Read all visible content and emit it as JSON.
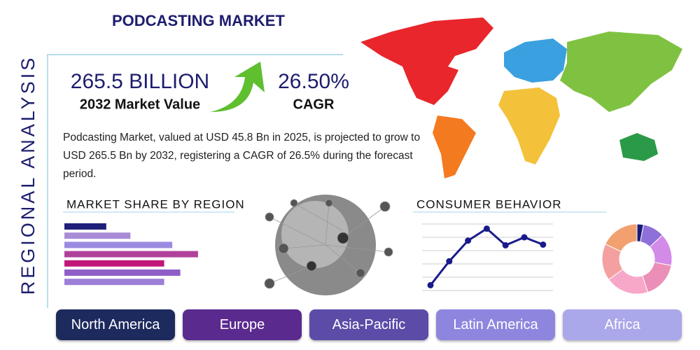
{
  "title": "PODCASTING MARKET",
  "side_label": "REGIONAL ANALYSIS",
  "stats": [
    {
      "value": "265.5 BILLION",
      "label": "2032 Market Value"
    },
    {
      "value": "26.50%",
      "label": "CAGR"
    }
  ],
  "description": "Podcasting Market, valued at USD 45.8 Bn in 2025, is projected to grow to USD 265.5 Bn by 2032, registering a CAGR of 26.5% during the forecast period.",
  "market_share": {
    "type": "bar",
    "title": "MARKET SHARE BY REGION",
    "values": [
      26,
      41,
      67,
      83,
      62,
      72,
      62
    ],
    "colors": [
      "#1f1f7a",
      "#a98bd6",
      "#9b8be0",
      "#b1429c",
      "#c2177a",
      "#8f5fc7",
      "#9d7fd8"
    ],
    "xlim": [
      0,
      100
    ]
  },
  "consumer_behavior": {
    "type": "line",
    "title": "CONSUMER BEHAVIOR",
    "values": [
      8,
      44,
      75,
      93,
      68,
      80,
      69
    ],
    "color": "#1a1a8c",
    "ylim": [
      0,
      100
    ],
    "yticks": [
      0,
      20,
      40,
      60,
      80,
      100
    ],
    "grid": true
  },
  "donut": {
    "type": "pie",
    "values": [
      3,
      10,
      15,
      17,
      20,
      17,
      18
    ],
    "colors": [
      "#1a1a7a",
      "#8f6fd8",
      "#d38be8",
      "#ec8fb8",
      "#f7a8c8",
      "#f4a0a0",
      "#f2a070"
    ]
  },
  "regions": [
    "North America",
    "Europe",
    "Asia-Pacific",
    "Latin America",
    "Africa"
  ]
}
